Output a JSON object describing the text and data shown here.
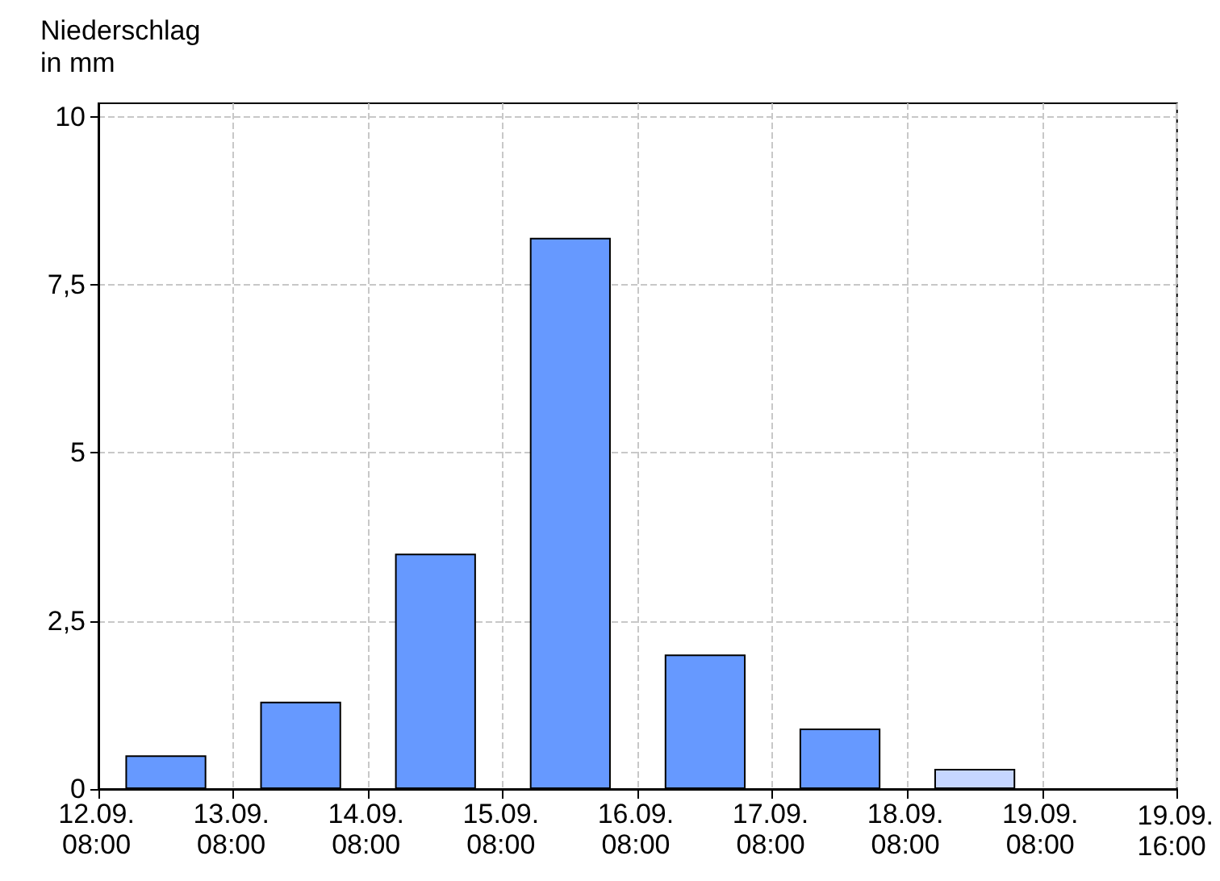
{
  "chart_data": {
    "type": "bar",
    "ylabel": "Niederschlag\nin mm",
    "categories": [
      "12.09.\n08:00",
      "13.09.\n08:00",
      "14.09.\n08:00",
      "15.09.\n08:00",
      "16.09.\n08:00",
      "17.09.\n08:00",
      "18.09.\n08:00",
      "19.09.\n08:00"
    ],
    "values": [
      0.5,
      1.3,
      3.5,
      8.2,
      2.0,
      0.9,
      0.3,
      null
    ],
    "colors": [
      "#6699ff",
      "#6699ff",
      "#6699ff",
      "#6699ff",
      "#6699ff",
      "#6699ff",
      "#c6d6ff",
      null
    ],
    "annotations": [
      "19.09.\n16:00"
    ],
    "ylim": [
      0,
      10.2
    ],
    "yticks": [
      0,
      {
        "value": 2.5,
        "label": "2,5"
      },
      5,
      {
        "value": 7.5,
        "label": "7,5"
      },
      10
    ],
    "grid": true
  }
}
